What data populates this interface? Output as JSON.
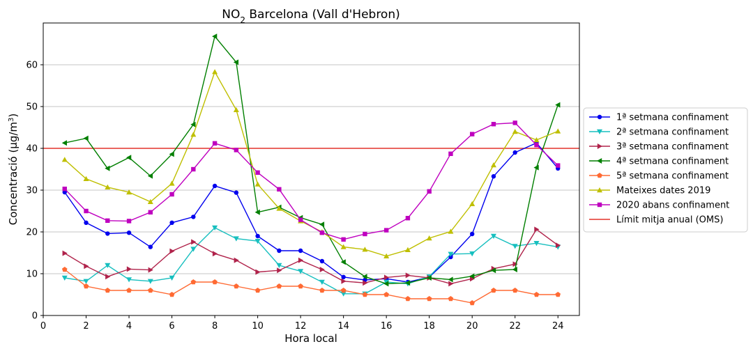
{
  "chart_data": {
    "type": "line",
    "title_main": "NO",
    "title_sub": "2",
    "title_rest": " Barcelona (Vall d'Hebron)",
    "xlabel": "Hora local",
    "ylabel_main": "Concentració (μg/m",
    "ylabel_sup": "3",
    "ylabel_end": ")",
    "xlim": [
      0,
      25
    ],
    "ylim": [
      0,
      70
    ],
    "xticks": [
      0,
      2,
      4,
      6,
      8,
      10,
      12,
      14,
      16,
      18,
      20,
      22,
      24
    ],
    "yticks": [
      0,
      10,
      20,
      30,
      40,
      50,
      60
    ],
    "grid": "horizontal",
    "legend_position": "right",
    "x": [
      1,
      2,
      3,
      4,
      5,
      6,
      7,
      8,
      9,
      10,
      11,
      12,
      13,
      14,
      15,
      16,
      17,
      18,
      19,
      20,
      21,
      22,
      23,
      24
    ],
    "series": [
      {
        "name": "1ª setmana confinament",
        "color": "#0000ee",
        "marker": "circle",
        "values": [
          29.5,
          22.2,
          19.6,
          19.8,
          16.4,
          22.2,
          23.6,
          31.0,
          29.4,
          19.0,
          15.5,
          15.5,
          13.0,
          9.2,
          8.5,
          8.8,
          8.0,
          9.2,
          14.0,
          19.5,
          33.3,
          39.0,
          41.3,
          35.2
        ]
      },
      {
        "name": "2ª setmana confinament",
        "color": "#17bfbf",
        "marker": "triangle-down",
        "values": [
          9.0,
          8.2,
          12.0,
          8.6,
          8.2,
          9.0,
          15.9,
          21.0,
          18.4,
          17.8,
          12.0,
          10.6,
          8.0,
          5.2,
          5.2,
          8.0,
          7.6,
          9.3,
          14.7,
          14.8,
          19.0,
          16.6,
          17.3,
          16.4
        ]
      },
      {
        "name": "3ª setmana confinament",
        "color": "#b0234b",
        "marker": "triangle-right",
        "values": [
          14.9,
          11.8,
          9.3,
          11.1,
          10.9,
          15.4,
          17.6,
          14.8,
          13.2,
          10.4,
          10.8,
          13.2,
          11.0,
          8.2,
          7.8,
          9.1,
          9.6,
          9.0,
          7.6,
          8.8,
          11.2,
          12.3,
          20.6,
          16.8
        ]
      },
      {
        "name": "4ª setmana confinament",
        "color": "#007f00",
        "marker": "triangle-left",
        "values": [
          41.3,
          42.4,
          35.2,
          37.8,
          33.4,
          38.6,
          45.7,
          66.8,
          60.6,
          24.7,
          25.9,
          23.4,
          21.8,
          12.8,
          9.3,
          7.6,
          7.8,
          9.0,
          8.6,
          9.4,
          10.8,
          11.0,
          35.4,
          50.4
        ]
      },
      {
        "name": "5ª setmana confinament",
        "color": "#ff6a33",
        "marker": "pentagon",
        "values": [
          11.0,
          7.0,
          6.0,
          6.0,
          6.0,
          5.0,
          8.0,
          8.0,
          7.0,
          6.0,
          7.0,
          7.0,
          6.0,
          6.0,
          5.0,
          5.0,
          4.0,
          4.0,
          4.0,
          3.0,
          6.0,
          6.0,
          5.0,
          5.0
        ]
      },
      {
        "name": "Mateixes dates 2019",
        "color": "#bfbf00",
        "marker": "triangle-up",
        "values": [
          37.3,
          32.7,
          30.7,
          29.5,
          27.2,
          31.6,
          43.3,
          58.3,
          49.2,
          31.4,
          25.6,
          22.6,
          20.0,
          16.4,
          15.8,
          14.2,
          15.7,
          18.5,
          20.1,
          26.7,
          36.0,
          44.0,
          42.0,
          44.1
        ]
      },
      {
        "name": "2020 abans confinament",
        "color": "#bf00bf",
        "marker": "square",
        "values": [
          30.3,
          25.0,
          22.7,
          22.6,
          24.7,
          29.0,
          35.0,
          41.2,
          39.6,
          34.2,
          30.2,
          22.9,
          19.8,
          18.2,
          19.5,
          20.4,
          23.3,
          29.7,
          38.7,
          43.4,
          45.8,
          46.1,
          40.8,
          35.9
        ]
      }
    ],
    "reference_line": {
      "name": "Límit mitja anual (OMS)",
      "value": 40,
      "color": "#e3322a"
    }
  }
}
